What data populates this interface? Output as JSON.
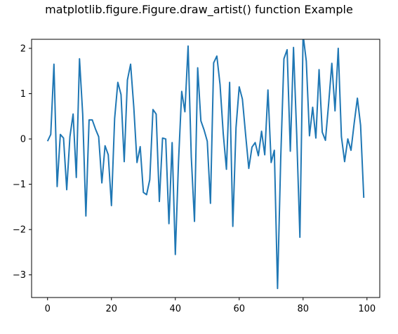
{
  "chart_data": {
    "type": "line",
    "title": "matplotlib.figure.Figure.draw_artist() function Example",
    "xlabel": "",
    "ylabel": "",
    "xlim": [
      -5,
      104
    ],
    "ylim": [
      -3.5,
      2.2
    ],
    "xticks": [
      0,
      20,
      40,
      60,
      80,
      100
    ],
    "yticks": [
      -3,
      -2,
      -1,
      0,
      1,
      2
    ],
    "grid": false,
    "colors": {
      "line": "#1f77b4",
      "axes": "#000000"
    },
    "x": [
      0,
      1,
      2,
      3,
      4,
      5,
      6,
      7,
      8,
      9,
      10,
      11,
      12,
      13,
      14,
      15,
      16,
      17,
      18,
      19,
      20,
      21,
      22,
      23,
      24,
      25,
      26,
      27,
      28,
      29,
      30,
      31,
      32,
      33,
      34,
      35,
      36,
      37,
      38,
      39,
      40,
      41,
      42,
      43,
      44,
      45,
      46,
      47,
      48,
      49,
      50,
      51,
      52,
      53,
      54,
      55,
      56,
      57,
      58,
      59,
      60,
      61,
      62,
      63,
      64,
      65,
      66,
      67,
      68,
      69,
      70,
      71,
      72,
      73,
      74,
      75,
      76,
      77,
      78,
      79,
      80,
      81,
      82,
      83,
      84,
      85,
      86,
      87,
      88,
      89,
      90,
      91,
      92,
      93,
      94,
      95,
      96,
      97,
      98,
      99
    ],
    "series": [
      {
        "values": [
          -0.05,
          0.1,
          1.65,
          -1.05,
          0.1,
          0.02,
          -1.12,
          0.05,
          0.55,
          -0.85,
          1.77,
          0.55,
          -1.7,
          0.42,
          0.42,
          0.22,
          0.05,
          -0.97,
          -0.15,
          -0.35,
          -1.47,
          0.45,
          1.25,
          0.98,
          -0.5,
          1.3,
          1.65,
          0.7,
          -0.52,
          -0.17,
          -1.18,
          -1.23,
          -0.9,
          0.65,
          0.55,
          -1.38,
          0.02,
          0.0,
          -1.87,
          -0.08,
          -2.55,
          -0.5,
          1.05,
          0.6,
          2.05,
          -0.4,
          -1.82,
          1.57,
          0.4,
          0.2,
          -0.05,
          -1.42,
          1.68,
          1.83,
          1.2,
          0.12,
          -0.67,
          1.25,
          -1.93,
          0.25,
          1.15,
          0.88,
          0.1,
          -0.65,
          -0.18,
          -0.08,
          -0.37,
          0.17,
          -0.35,
          1.08,
          -0.52,
          -0.25,
          -3.3,
          -0.42,
          1.77,
          1.97,
          -0.27,
          2.02,
          0.1,
          -2.17,
          2.3,
          1.72,
          0.07,
          0.7,
          0.02,
          1.53,
          0.15,
          -0.03,
          0.78,
          1.67,
          0.62,
          2.0,
          0.05,
          -0.5,
          0.0,
          -0.25,
          0.35,
          0.9,
          0.3,
          -1.3
        ]
      }
    ]
  }
}
